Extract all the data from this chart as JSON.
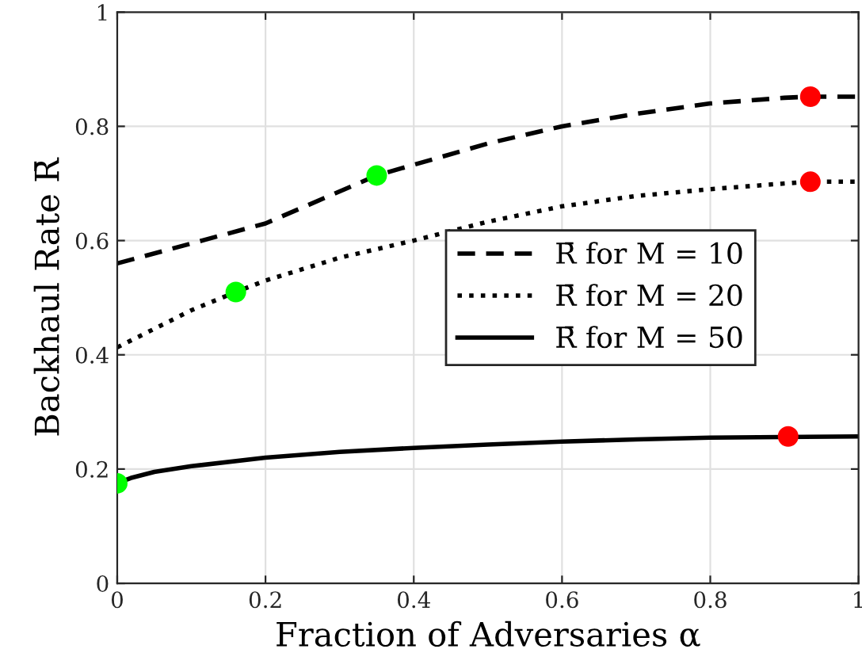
{
  "chart_data": {
    "type": "line",
    "xlabel": "Fraction of Adversaries α",
    "ylabel": "Backhaul Rate R̄",
    "xlim": [
      0,
      1
    ],
    "ylim": [
      0,
      1
    ],
    "xticks": [
      0,
      0.2,
      0.4,
      0.6,
      0.8,
      1
    ],
    "yticks": [
      0,
      0.2,
      0.4,
      0.6,
      0.8,
      1
    ],
    "grid": true,
    "legend": "center right",
    "marker": "none",
    "series": [
      {
        "name": "R̄ for M = 10",
        "color": "#000000",
        "line_style": "dashed",
        "x": [
          0,
          0.1,
          0.2,
          0.35,
          0.5,
          0.6,
          0.7,
          0.8,
          0.9,
          0.935,
          1
        ],
        "values": [
          0.56,
          0.595,
          0.63,
          0.714,
          0.77,
          0.8,
          0.822,
          0.84,
          0.85,
          0.852,
          0.852
        ]
      },
      {
        "name": "R̄ for M = 20",
        "color": "#000000",
        "line_style": "dotted",
        "x": [
          0,
          0.1,
          0.16,
          0.2,
          0.3,
          0.4,
          0.5,
          0.6,
          0.7,
          0.8,
          0.9,
          0.935,
          1
        ],
        "values": [
          0.413,
          0.478,
          0.51,
          0.53,
          0.57,
          0.6,
          0.633,
          0.66,
          0.678,
          0.69,
          0.7,
          0.703,
          0.703
        ]
      },
      {
        "name": "R̄ for M = 50",
        "color": "#000000",
        "line_style": "solid",
        "x": [
          0,
          0.02,
          0.05,
          0.1,
          0.2,
          0.3,
          0.4,
          0.5,
          0.6,
          0.7,
          0.8,
          1
        ],
        "values": [
          0.175,
          0.185,
          0.195,
          0.205,
          0.22,
          0.23,
          0.237,
          0.243,
          0.248,
          0.252,
          0.255,
          0.257
        ]
      },
      {
        "type": "scatter",
        "color": "#00ff00",
        "marker": "circle",
        "x": [
          0,
          0.16,
          0.35
        ],
        "values": [
          0.175,
          0.51,
          0.714
        ]
      },
      {
        "type": "scatter",
        "color": "#ff0000",
        "marker": "circle",
        "x": [
          0.905,
          0.935,
          0.935
        ],
        "values": [
          0.257,
          0.703,
          0.852
        ]
      }
    ]
  }
}
